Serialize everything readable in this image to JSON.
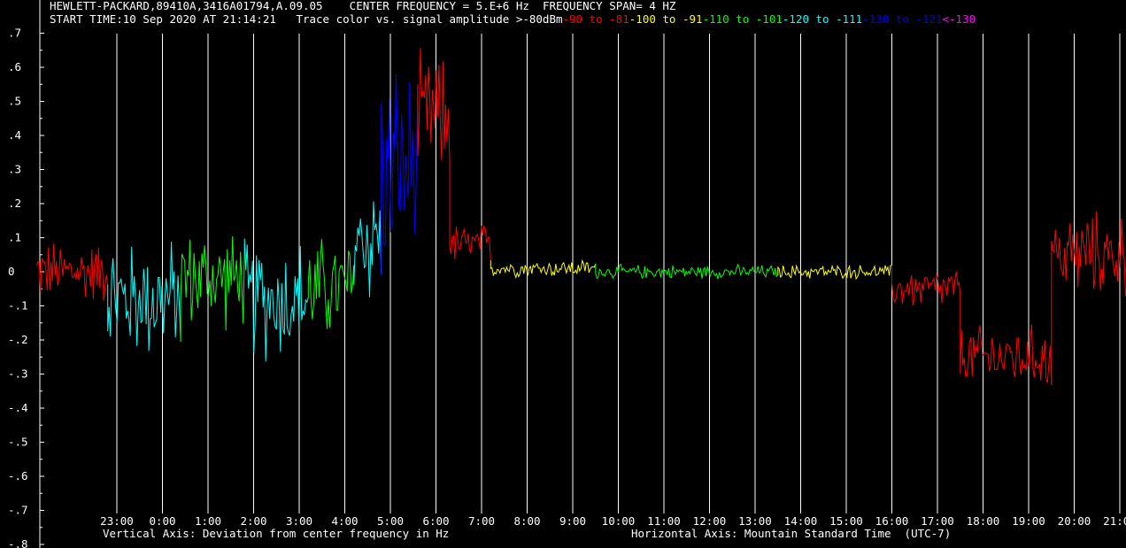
{
  "header": {
    "instrument": "HEWLETT-PACKARD,89410A,3416A01794,A.09.05",
    "center_frequency": "CENTER FREQUENCY = 5.E+6 Hz",
    "frequency_span": "FREQUENCY SPAN= 4 HZ",
    "start_time": "START TIME:10 Sep 2020 AT 21:14:21",
    "legend_intro": "Trace color vs. signal amplitude"
  },
  "colors": {
    "background": "#000000",
    "grid": "#ffffff",
    "text": "#ffffff"
  },
  "chart_data": {
    "type": "line",
    "xlabel": "Horizontal Axis: Mountain Standard Time  (UTC-7)",
    "ylabel": "Vertical Axis: Deviation from center frequency in Hz",
    "ylim": [
      -0.8,
      0.75
    ],
    "y_ticks": [
      ".7",
      ".6",
      ".5",
      ".4",
      ".3",
      ".2",
      ".1",
      "0",
      "-.1",
      "-.2",
      "-.3",
      "-.4",
      "-.5",
      "-.6",
      "-.7",
      "-.8"
    ],
    "x_ticks": [
      "23:00",
      "0:00",
      "1:00",
      "2:00",
      "3:00",
      "4:00",
      "5:00",
      "6:00",
      "7:00",
      "8:00",
      "9:00",
      "10:00",
      "11:00",
      "12:00",
      "13:00",
      "14:00",
      "15:00",
      "16:00",
      "17:00",
      "18:00",
      "19:00",
      "20:00",
      "21:00"
    ],
    "x_range_hours": [
      21.24,
      45.3
    ],
    "grid": "vertical lines at each hour",
    "legend": [
      {
        "label": ">-80dBm",
        "color": "#ffffff"
      },
      {
        "label": "-90 to -81",
        "color": "#ff0000"
      },
      {
        "label": "-100 to -91",
        "color": "#ffff00"
      },
      {
        "label": "-110 to -101",
        "color": "#00ff00"
      },
      {
        "label": "-120 to -111",
        "color": "#00ffff"
      },
      {
        "label": "-130 to -121",
        "color": "#0000ff"
      },
      {
        "label": "<-130",
        "color": "#ff00ff"
      }
    ],
    "trace_segments": [
      {
        "t": [
          21.24,
          22.8
        ],
        "y_center": 0.0,
        "spread": 0.09,
        "color": "#ff0000"
      },
      {
        "t": [
          22.8,
          24.4
        ],
        "y_center": -0.08,
        "spread": 0.17,
        "color": "#00ffff"
      },
      {
        "t": [
          24.4,
          25.8
        ],
        "y_center": -0.02,
        "spread": 0.14,
        "color": "#00ff00"
      },
      {
        "t": [
          25.8,
          27.2
        ],
        "y_center": -0.08,
        "spread": 0.18,
        "color": "#00ffff"
      },
      {
        "t": [
          27.2,
          28.2
        ],
        "y_center": -0.05,
        "spread": 0.15,
        "color": "#00ff00"
      },
      {
        "t": [
          28.2,
          28.8
        ],
        "y_center": 0.1,
        "spread": 0.2,
        "color": "#00ffff"
      },
      {
        "t": [
          28.8,
          29.6
        ],
        "y_center": 0.3,
        "spread": 0.3,
        "color": "#0000ff"
      },
      {
        "t": [
          29.6,
          30.3
        ],
        "y_center": 0.45,
        "spread": 0.18,
        "color": "#ff0000"
      },
      {
        "t": [
          30.3,
          31.2
        ],
        "y_center": 0.08,
        "spread": 0.06,
        "color": "#ff0000"
      },
      {
        "t": [
          31.2,
          33.5
        ],
        "y_center": 0.01,
        "spread": 0.025,
        "color": "#ffff00"
      },
      {
        "t": [
          33.5,
          37.5
        ],
        "y_center": 0.0,
        "spread": 0.02,
        "color": "#00ff00"
      },
      {
        "t": [
          37.5,
          40.0
        ],
        "y_center": 0.0,
        "spread": 0.02,
        "color": "#ffff00"
      },
      {
        "t": [
          40.0,
          41.5
        ],
        "y_center": -0.05,
        "spread": 0.06,
        "color": "#ff0000"
      },
      {
        "t": [
          41.5,
          43.5
        ],
        "y_center": -0.25,
        "spread": 0.09,
        "color": "#ff0000"
      },
      {
        "t": [
          43.5,
          45.3
        ],
        "y_center": 0.05,
        "spread": 0.12,
        "color": "#ff0000"
      }
    ]
  }
}
